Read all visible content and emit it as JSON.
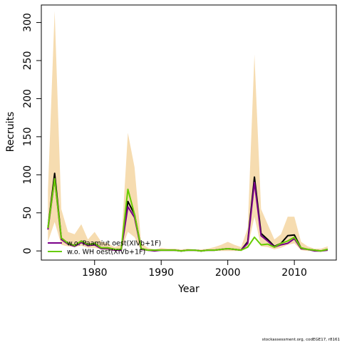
{
  "chart_data": {
    "type": "line",
    "xlabel": "Year",
    "ylabel": "Recruits",
    "xlim": [
      1972,
      2016.3
    ],
    "ylim": [
      -12,
      323
    ],
    "x_ticks": [
      1980,
      1990,
      2000,
      2010
    ],
    "y_ticks": [
      0,
      50,
      100,
      150,
      200,
      250,
      300
    ],
    "grid": false,
    "legend_position": "bottom-left",
    "band": {
      "color": "#f6dcb0",
      "x": [
        1973,
        1974,
        1975,
        1976,
        1977,
        1978,
        1979,
        1980,
        1981,
        1982,
        1983,
        1984,
        1985,
        1986,
        1987,
        1988,
        1989,
        1990,
        1991,
        1992,
        1993,
        1994,
        1995,
        1996,
        1997,
        1998,
        1999,
        2000,
        2001,
        2002,
        2003,
        2004,
        2005,
        2006,
        2007,
        2008,
        2009,
        2010,
        2011,
        2012,
        2013,
        2014,
        2015
      ],
      "lower": [
        12,
        38,
        8,
        6,
        5,
        7,
        4,
        4,
        2,
        1,
        0,
        1,
        25,
        18,
        1,
        0,
        0,
        0,
        0,
        0,
        0,
        0,
        0,
        0,
        0,
        0,
        0,
        0,
        0,
        0,
        4,
        45,
        6,
        5,
        2,
        4,
        8,
        10,
        1,
        0,
        0,
        0,
        0
      ],
      "upper": [
        80,
        315,
        55,
        25,
        22,
        35,
        15,
        25,
        12,
        10,
        5,
        8,
        155,
        110,
        10,
        4,
        2,
        4,
        3,
        3,
        2,
        3,
        2,
        2,
        3,
        5,
        8,
        12,
        8,
        5,
        30,
        258,
        55,
        35,
        15,
        22,
        45,
        45,
        12,
        6,
        3,
        3,
        6
      ]
    },
    "series": [
      {
        "color": "#000000",
        "width": 2,
        "values": [
          30,
          102,
          17,
          10,
          7,
          13,
          8,
          10,
          4,
          4,
          2,
          2,
          65,
          48,
          3,
          1,
          1,
          1,
          1,
          1,
          0,
          1,
          1,
          0,
          1,
          1,
          2,
          3,
          2,
          1,
          12,
          97,
          23,
          15,
          6,
          10,
          20,
          21,
          4,
          2,
          1,
          0,
          2
        ]
      },
      {
        "name": "w.o. Paamiut   oest(XIVb+1F)",
        "color": "#7a0089",
        "width": 2,
        "values": [
          28,
          95,
          15,
          9,
          6,
          11,
          7,
          8,
          3,
          3,
          1,
          1,
          58,
          44,
          2,
          1,
          0,
          1,
          1,
          1,
          0,
          1,
          1,
          0,
          1,
          1,
          2,
          3,
          2,
          1,
          10,
          90,
          20,
          13,
          5,
          8,
          10,
          16,
          3,
          2,
          0,
          0,
          1
        ]
      },
      {
        "name": "w.o. WH   oest(XIVb+1F)",
        "color": "#66cc00",
        "width": 2,
        "values": [
          30,
          95,
          17,
          10,
          7,
          13,
          8,
          10,
          4,
          4,
          2,
          2,
          81,
          48,
          3,
          1,
          1,
          1,
          1,
          1,
          0,
          1,
          1,
          0,
          1,
          1,
          2,
          3,
          2,
          1,
          5,
          18,
          8,
          9,
          5,
          10,
          13,
          18,
          4,
          2,
          1,
          0,
          2
        ]
      }
    ]
  },
  "footer": "stockassessment.org, codEGE17, r8161"
}
